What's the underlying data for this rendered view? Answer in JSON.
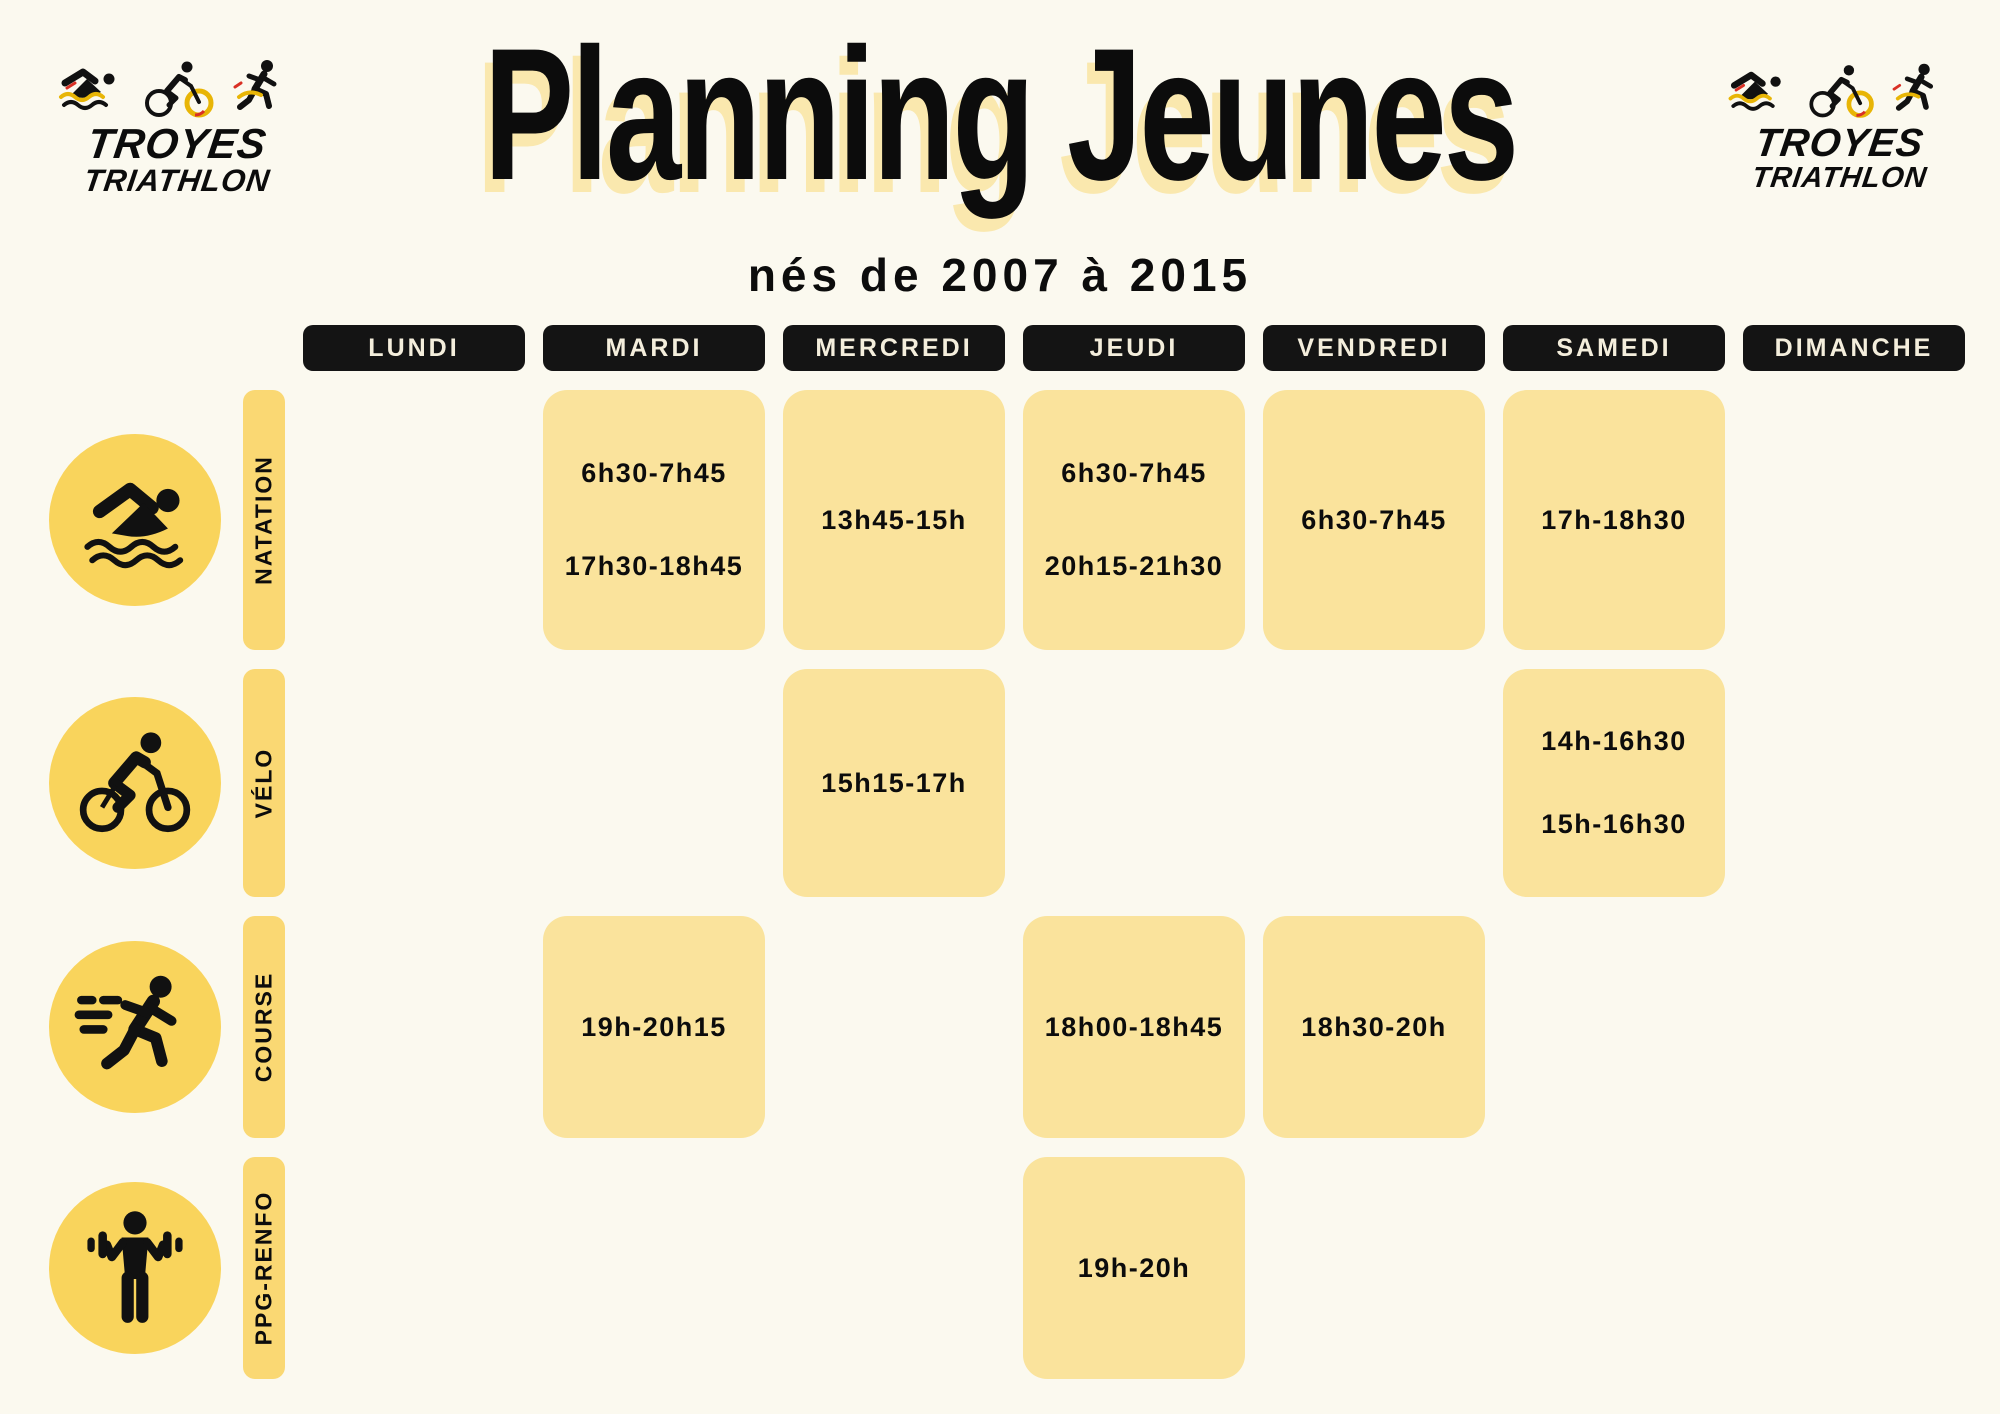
{
  "title": "Planning Jeunes",
  "subtitle": "nés de 2007 à 2015",
  "logo": {
    "line1": "TROYES",
    "line2": "TRIATHLON"
  },
  "days": [
    "LUNDI",
    "MARDI",
    "MERCREDI",
    "JEUDI",
    "VENDREDI",
    "SAMEDI",
    "DIMANCHE"
  ],
  "rows": [
    {
      "label": "NATATION",
      "icon": "swimmer-icon",
      "cells": [
        null,
        {
          "times": [
            "6h30-7h45",
            "17h30-18h45"
          ]
        },
        {
          "times": [
            "13h45-15h"
          ]
        },
        {
          "times": [
            "6h30-7h45",
            "20h15-21h30"
          ]
        },
        {
          "times": [
            "6h30-7h45"
          ]
        },
        {
          "times": [
            "17h-18h30"
          ]
        },
        null
      ]
    },
    {
      "label": "VÉLO",
      "icon": "cyclist-icon",
      "cells": [
        null,
        null,
        {
          "times": [
            "15h15-17h"
          ]
        },
        null,
        null,
        {
          "times": [
            "14h-16h30",
            "15h-16h30"
          ]
        },
        null
      ]
    },
    {
      "label": "COURSE",
      "icon": "runner-icon",
      "cells": [
        null,
        {
          "times": [
            "19h-20h15"
          ]
        },
        null,
        {
          "times": [
            "18h00-18h45"
          ]
        },
        {
          "times": [
            "18h30-20h"
          ]
        },
        null,
        null
      ]
    },
    {
      "label": "PPG-RENFO",
      "icon": "strength-icon",
      "cells": [
        null,
        null,
        null,
        {
          "times": [
            "19h-20h"
          ]
        },
        null,
        null,
        null
      ]
    }
  ],
  "colors": {
    "background": "#FBF9EF",
    "card": "#FAE39C",
    "label_strip": "#FAD873",
    "icon_circle": "#F9D45C",
    "day_badge_bg": "#141414",
    "day_badge_text": "#F4EEDC",
    "text": "#111111",
    "title_shadow": "#FAE8AE"
  }
}
